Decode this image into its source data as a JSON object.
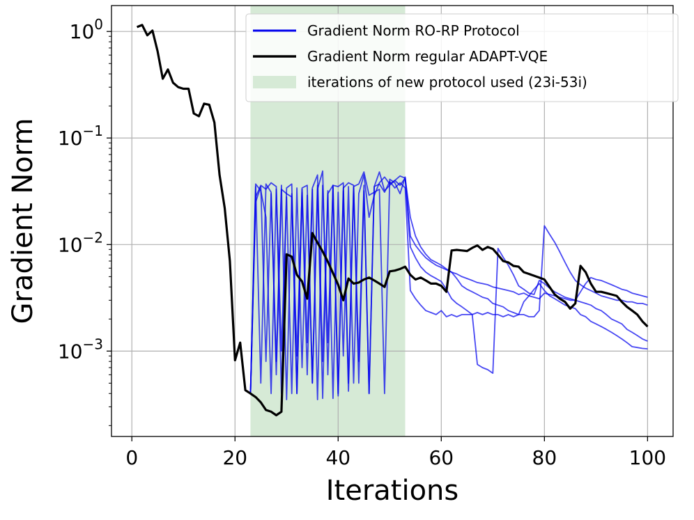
{
  "chart_data": {
    "type": "line",
    "xlabel": "Iterations",
    "ylabel": "Gradient Norm",
    "xlim": [
      -3.95,
      104.95
    ],
    "ylim": [
      0.000158,
      1.75
    ],
    "yscale": "log",
    "grid": true,
    "x_ticks": [
      0,
      20,
      40,
      60,
      80,
      100
    ],
    "x_tick_labels": [
      "0",
      "20",
      "40",
      "60",
      "80",
      "100"
    ],
    "y_ticks": [
      0.001,
      0.01,
      0.1,
      1
    ],
    "y_tick_labels": [
      {
        "base": "10",
        "exp": "−3"
      },
      {
        "base": "10",
        "exp": "−2"
      },
      {
        "base": "10",
        "exp": "−1"
      },
      {
        "base": "10",
        "exp": "0"
      }
    ],
    "legend_position": "top-right",
    "legend": [
      {
        "label": "Gradient Norm RO-RP Protocol",
        "kind": "line",
        "color": "#0000ee"
      },
      {
        "label": "Gradient Norm regular ADAPT-VQE",
        "kind": "line",
        "color": "#000000"
      },
      {
        "label": "iterations of new protocol used (23i-53i)",
        "kind": "patch",
        "color": "#d6ead6"
      }
    ],
    "shaded_region": {
      "x0": 23,
      "x1": 53,
      "color": "#d6ead6"
    },
    "series": [
      {
        "style": "regular",
        "color": "#000000",
        "x": [
          1,
          2,
          3,
          4,
          5,
          6,
          7,
          8,
          9,
          10,
          11,
          12,
          13,
          14,
          15,
          16,
          17,
          18,
          19,
          20,
          21,
          22,
          23,
          24,
          25,
          26,
          27,
          28,
          29,
          30,
          31,
          32,
          33,
          34,
          35,
          36,
          37,
          38,
          39,
          40,
          41,
          42,
          43,
          44,
          45,
          46,
          47,
          48,
          49,
          50,
          51,
          52,
          53,
          54,
          55,
          56,
          57,
          58,
          59,
          60,
          61,
          62,
          63,
          64,
          65,
          66,
          67,
          68,
          69,
          70,
          71,
          72,
          73,
          74,
          75,
          76,
          77,
          78,
          79,
          80,
          81,
          82,
          83,
          84,
          85,
          86,
          87,
          88,
          89,
          90,
          91,
          92,
          93,
          94,
          95,
          96,
          97,
          98,
          99,
          100
        ],
        "y": [
          1.1,
          1.15,
          0.92,
          1.02,
          0.65,
          0.36,
          0.44,
          0.33,
          0.3,
          0.29,
          0.29,
          0.17,
          0.16,
          0.21,
          0.205,
          0.14,
          0.045,
          0.022,
          0.007,
          0.00082,
          0.0012,
          0.00043,
          0.0004,
          0.00037,
          0.00033,
          0.00028,
          0.00027,
          0.00025,
          0.00027,
          0.0081,
          0.0077,
          0.0052,
          0.0045,
          0.0031,
          0.0128,
          0.0104,
          0.0086,
          0.0069,
          0.0054,
          0.0042,
          0.003,
          0.0048,
          0.0043,
          0.0044,
          0.0047,
          0.0049,
          0.0046,
          0.0043,
          0.004,
          0.0056,
          0.0057,
          0.0059,
          0.0062,
          0.0052,
          0.0047,
          0.0049,
          0.0046,
          0.0043,
          0.0043,
          0.0041,
          0.0036,
          0.0088,
          0.0089,
          0.0088,
          0.0087,
          0.0093,
          0.0098,
          0.0089,
          0.0095,
          0.0091,
          0.008,
          0.007,
          0.0068,
          0.0063,
          0.0062,
          0.0055,
          0.0053,
          0.0051,
          0.0049,
          0.0047,
          0.004,
          0.0034,
          0.0031,
          0.0029,
          0.0025,
          0.0028,
          0.0063,
          0.0055,
          0.0043,
          0.0036,
          0.0036,
          0.0035,
          0.0034,
          0.0033,
          0.0029,
          0.0026,
          0.0024,
          0.0022,
          0.0019,
          0.0017
        ]
      },
      {
        "style": "ro-rp",
        "color": "#0000ee",
        "x": [
          23,
          24,
          25,
          26,
          27,
          28,
          29,
          30,
          31,
          32,
          33,
          34,
          35,
          36,
          37,
          38,
          39,
          40,
          41,
          42,
          43,
          44,
          45,
          46,
          47,
          48,
          49,
          50,
          51,
          52,
          53,
          54,
          55,
          56,
          57,
          58,
          59,
          60,
          61,
          62,
          63,
          64,
          65,
          66,
          67,
          68,
          69,
          70,
          71,
          72,
          73,
          74,
          75,
          76,
          77,
          78,
          79,
          80,
          81,
          82,
          83,
          84,
          85,
          86,
          87,
          88,
          89,
          90,
          91,
          92,
          93,
          94,
          95,
          96,
          97,
          98,
          99,
          100
        ],
        "y": [
          0.0004,
          0.025,
          0.035,
          0.0008,
          0.03,
          0.0008,
          0.036,
          0.00035,
          0.03,
          0.0009,
          0.031,
          0.0006,
          0.033,
          0.00035,
          0.036,
          0.0012,
          0.034,
          0.00038,
          0.032,
          0.00042,
          0.034,
          0.0008,
          0.036,
          0.0004,
          0.035,
          0.037,
          0.031,
          0.039,
          0.034,
          0.038,
          0.034,
          0.0037,
          0.0031,
          0.0027,
          0.0024,
          0.0023,
          0.0022,
          0.0024,
          0.0021,
          0.0022,
          0.0021,
          0.0022,
          0.0022,
          0.0022,
          0.0023,
          0.0022,
          0.0023,
          0.0022,
          0.0022,
          0.0021,
          0.0022,
          0.0021,
          0.0022,
          0.0029,
          0.0033,
          0.0038,
          0.0043,
          0.0037,
          0.0033,
          0.0031,
          0.0029,
          0.0027,
          0.0026,
          0.0025,
          0.0022,
          0.0021,
          0.0019,
          0.0018,
          0.0017,
          0.0016,
          0.0015,
          0.0014,
          0.0013,
          0.0012,
          0.0011,
          0.00108,
          0.00106,
          0.00105
        ]
      },
      {
        "style": "ro-rp",
        "color": "#0000ee",
        "x": [
          23,
          24,
          25,
          26,
          27,
          28,
          29,
          30,
          31,
          32,
          33,
          34,
          35,
          36,
          37,
          38,
          39,
          40,
          41,
          42,
          43,
          44,
          45,
          46,
          47,
          48,
          49,
          50,
          51,
          52,
          53,
          54,
          55,
          56,
          57,
          58,
          59,
          60,
          61,
          62,
          63,
          64,
          65,
          66,
          67,
          68,
          69,
          70,
          71,
          72,
          73,
          74,
          75,
          76,
          77,
          78,
          79,
          80,
          81,
          82,
          83,
          84,
          85,
          86,
          87,
          88,
          89,
          90,
          91,
          92,
          93,
          94,
          95,
          96,
          97,
          98,
          99,
          100
        ],
        "y": [
          0.0004,
          0.037,
          0.032,
          0.018,
          0.0004,
          0.033,
          0.001,
          0.028,
          0.0004,
          0.034,
          0.0007,
          0.029,
          0.0005,
          0.036,
          0.00036,
          0.032,
          0.00036,
          0.031,
          0.0009,
          0.035,
          0.0005,
          0.03,
          0.045,
          0.018,
          0.029,
          0.038,
          0.043,
          0.037,
          0.04,
          0.036,
          0.042,
          0.0095,
          0.0075,
          0.0062,
          0.0055,
          0.0051,
          0.0048,
          0.0045,
          0.0038,
          0.0031,
          0.0028,
          0.0026,
          0.0024,
          0.0022,
          0.00075,
          0.0007,
          0.00067,
          0.00062,
          0.0092,
          0.0076,
          0.0064,
          0.0052,
          0.0041,
          0.0038,
          0.0035,
          0.0034,
          0.0046,
          0.0043,
          0.0039,
          0.0036,
          0.0034,
          0.0032,
          0.0031,
          0.003,
          0.0029,
          0.0028,
          0.0027,
          0.0025,
          0.0024,
          0.0022,
          0.002,
          0.0019,
          0.0018,
          0.0016,
          0.0015,
          0.0014,
          0.0013,
          0.00124
        ]
      },
      {
        "style": "ro-rp",
        "color": "#0000ee",
        "x": [
          23,
          24,
          25,
          26,
          27,
          28,
          29,
          30,
          31,
          32,
          33,
          34,
          35,
          36,
          37,
          38,
          39,
          40,
          41,
          42,
          43,
          44,
          45,
          46,
          47,
          48,
          49,
          50,
          51,
          52,
          53,
          54,
          55,
          56,
          57,
          58,
          59,
          60,
          61,
          62,
          63,
          64,
          65,
          66,
          67,
          68,
          69,
          70,
          71,
          72,
          73,
          74,
          75,
          76,
          77,
          78,
          79,
          80,
          81,
          82,
          83,
          84,
          85,
          86,
          87,
          88,
          89,
          90,
          91,
          92,
          93,
          94,
          95,
          96,
          97,
          98,
          99,
          100
        ],
        "y": [
          0.0004,
          0.035,
          0.0005,
          0.037,
          0.031,
          0.0006,
          0.033,
          0.03,
          0.028,
          0.0004,
          0.033,
          0.0012,
          0.034,
          0.045,
          0.0008,
          0.03,
          0.036,
          0.0004,
          0.034,
          0.038,
          0.036,
          0.0005,
          0.032,
          0.0004,
          0.035,
          0.048,
          0.032,
          0.036,
          0.04,
          0.044,
          0.042,
          0.018,
          0.012,
          0.0095,
          0.0081,
          0.0072,
          0.0068,
          0.0064,
          0.0059,
          0.0055,
          0.0048,
          0.0041,
          0.0038,
          0.0036,
          0.0034,
          0.0032,
          0.0031,
          0.0028,
          0.0027,
          0.0026,
          0.0024,
          0.0023,
          0.0022,
          0.0022,
          0.0021,
          0.0021,
          0.0024,
          0.015,
          0.0125,
          0.0105,
          0.0085,
          0.0068,
          0.0055,
          0.0046,
          0.0042,
          0.0039,
          0.0037,
          0.0035,
          0.0033,
          0.0032,
          0.0031,
          0.003,
          0.003,
          0.0029,
          0.0029,
          0.0028,
          0.0028,
          0.0027
        ]
      },
      {
        "style": "ro-rp",
        "color": "#0000ee",
        "x": [
          23,
          24,
          25,
          26,
          27,
          28,
          29,
          30,
          31,
          32,
          33,
          34,
          35,
          36,
          37,
          38,
          39,
          40,
          41,
          42,
          43,
          44,
          45,
          46,
          47,
          48,
          49,
          50,
          51,
          52,
          53,
          54,
          55,
          56,
          57,
          58,
          59,
          60,
          61,
          62,
          63,
          64,
          65,
          66,
          67,
          68,
          69,
          70,
          71,
          72,
          73,
          74,
          75,
          76,
          77,
          78,
          79,
          80,
          81,
          82,
          83,
          84,
          85,
          86,
          87,
          88,
          89,
          90,
          91,
          92,
          93,
          94,
          95,
          96,
          97,
          98,
          99,
          100
        ],
        "y": [
          0.0004,
          0.028,
          0.036,
          0.033,
          0.038,
          0.035,
          0.0004,
          0.034,
          0.037,
          0.0004,
          0.034,
          0.036,
          0.0005,
          0.033,
          0.049,
          0.0006,
          0.036,
          0.035,
          0.038,
          0.0005,
          0.035,
          0.037,
          0.048,
          0.029,
          0.031,
          0.033,
          0.0004,
          0.041,
          0.038,
          0.03,
          0.043,
          0.012,
          0.0098,
          0.0085,
          0.0075,
          0.0069,
          0.0064,
          0.0061,
          0.0058,
          0.0055,
          0.0053,
          0.005,
          0.0048,
          0.0046,
          0.0044,
          0.0043,
          0.0042,
          0.004,
          0.0039,
          0.0038,
          0.0037,
          0.0036,
          0.0034,
          0.0035,
          0.0033,
          0.0032,
          0.0031,
          0.0035,
          0.0034,
          0.0033,
          0.0032,
          0.0031,
          0.003,
          0.003,
          0.0036,
          0.0043,
          0.0049,
          0.0047,
          0.0046,
          0.0044,
          0.0042,
          0.004,
          0.0038,
          0.0037,
          0.0035,
          0.0034,
          0.0033,
          0.0032
        ]
      }
    ]
  }
}
